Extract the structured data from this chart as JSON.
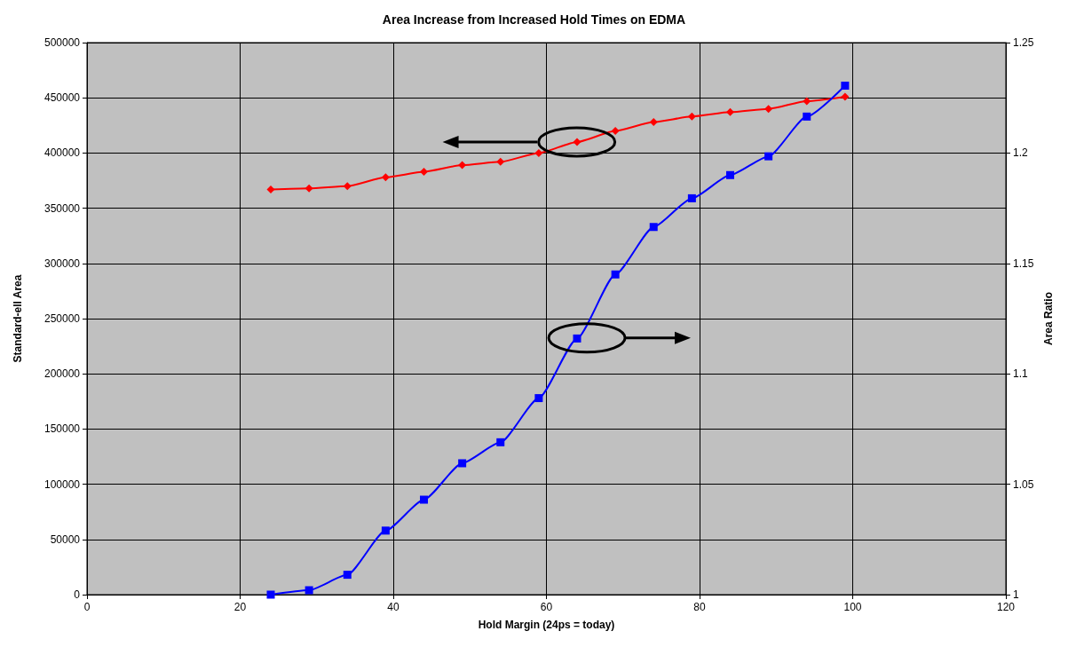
{
  "chart_data": {
    "type": "line",
    "title": "Area Increase from Increased Hold Times on EDMA",
    "xlabel": "Hold Margin (24ps = today)",
    "ylabel": "Standard-ell Area",
    "y2label": "Area Ratio",
    "x": [
      24,
      29,
      34,
      39,
      44,
      49,
      54,
      59,
      64,
      69,
      74,
      79,
      84,
      89,
      94,
      99
    ],
    "series": [
      {
        "color": "#ff0000",
        "marker": "diamond",
        "values": [
          367000,
          368000,
          370000,
          378000,
          383000,
          389000,
          392000,
          400000,
          410000,
          420000,
          428000,
          433000,
          437000,
          440000,
          447000,
          451000
        ]
      },
      {
        "color": "#0000ff",
        "marker": "square",
        "axis": "y2",
        "values": [
          1.0,
          1.002,
          1.009,
          1.029,
          1.043,
          1.0595,
          1.069,
          1.089,
          1.116,
          1.145,
          1.1665,
          1.1795,
          1.19,
          1.1985,
          1.2165,
          1.2305
        ]
      }
    ],
    "xlim": [
      0,
      120
    ],
    "xticks": [
      0,
      20,
      40,
      60,
      80,
      100,
      120
    ],
    "ylim": [
      0,
      500000
    ],
    "yticks": [
      0,
      50000,
      100000,
      150000,
      200000,
      250000,
      300000,
      350000,
      400000,
      450000,
      500000
    ],
    "y2lim": [
      1,
      1.25
    ],
    "y2ticks": [
      1,
      1.05,
      1.1,
      1.15,
      1.2,
      1.25
    ],
    "grid": true
  }
}
